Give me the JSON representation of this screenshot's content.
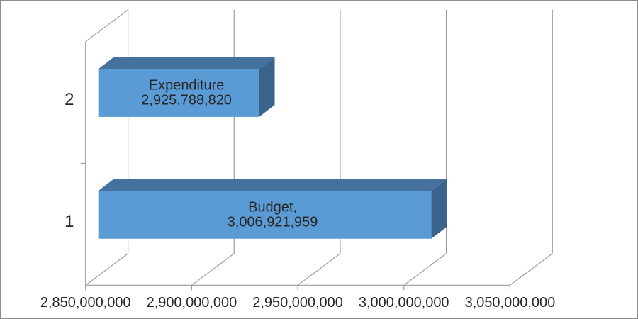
{
  "chart_data": {
    "type": "bar",
    "orientation": "horizontal",
    "style": "3d",
    "title": "",
    "legend_visible": false,
    "gridlines": "vertical-major",
    "categories": [
      "1",
      "2"
    ],
    "points": [
      {
        "category": "1",
        "name": "Budget",
        "value": 3006921959,
        "label_lines": [
          "Budget,",
          "3,006,921,959"
        ]
      },
      {
        "category": "2",
        "name": "Expenditure",
        "value": 2925788820,
        "label_lines": [
          "Expenditure",
          "2,925,788,820"
        ]
      }
    ],
    "value_axis": {
      "min": 2850000000,
      "max": 3050000000,
      "tick_interval": 50000000,
      "tick_labels": [
        "2,850,000,000",
        "2,900,000,000",
        "2,950,000,000",
        "3,000,000,000",
        "3,050,000,000"
      ]
    },
    "colors": {
      "bar_front": "#5B9BD5",
      "bar_top": "#44719E",
      "bar_side": "#3A648C",
      "gridline": "#9C9C9C",
      "axis_line": "#9C9C9C",
      "text": "#262626",
      "background": "#FFFFFF",
      "frame_border": "#8C8C8C"
    }
  }
}
